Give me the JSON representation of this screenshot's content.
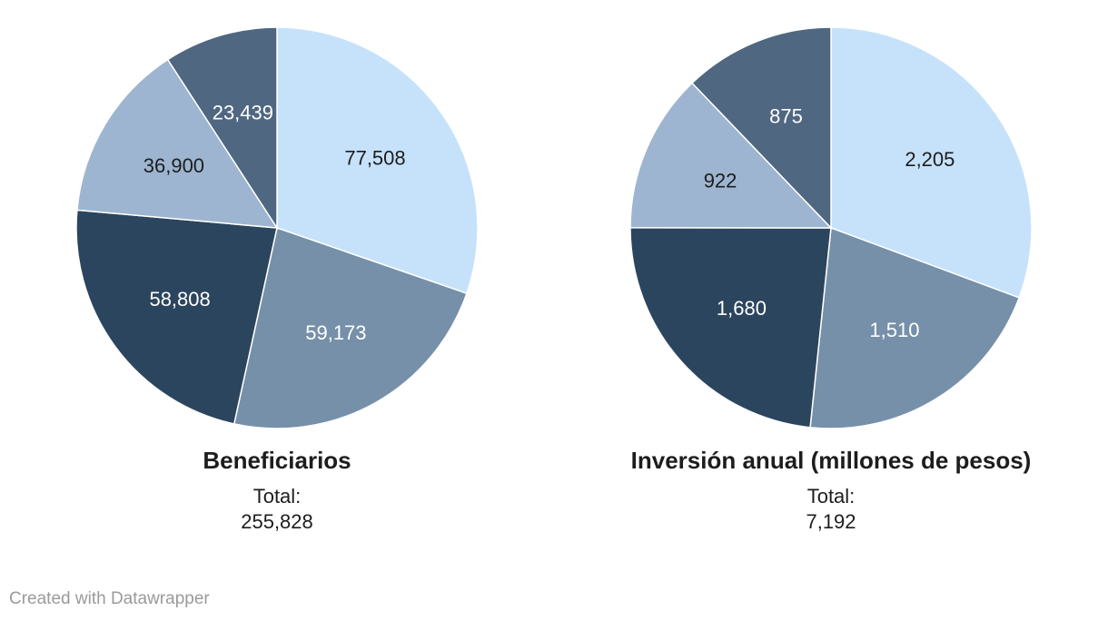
{
  "colors": {
    "light_blue": "#c6e2fb",
    "mid_blue": "#7690a9",
    "dark_navy": "#2c455e",
    "pale_steel": "#9db5d0",
    "slate": "#4f6780",
    "label_dark": "#1d1d1d",
    "label_light": "#ffffff"
  },
  "chart_data": [
    {
      "type": "pie",
      "title": "Beneficiarios",
      "total_label": "Total:",
      "total_value": "255,828",
      "slices": [
        {
          "value": 77508,
          "label": "77,508",
          "color": "#c6e2fb",
          "label_color": "#1d1d1d"
        },
        {
          "value": 59173,
          "label": "59,173",
          "color": "#7690a9",
          "label_color": "#ffffff"
        },
        {
          "value": 58808,
          "label": "58,808",
          "color": "#2c455e",
          "label_color": "#ffffff"
        },
        {
          "value": 36900,
          "label": "36,900",
          "color": "#9db5d0",
          "label_color": "#1d1d1d"
        },
        {
          "value": 23439,
          "label": "23,439",
          "color": "#4f6780",
          "label_color": "#ffffff"
        }
      ]
    },
    {
      "type": "pie",
      "title": "Inversión anual (millones de pesos)",
      "total_label": "Total:",
      "total_value": "7,192",
      "slices": [
        {
          "value": 2205,
          "label": "2,205",
          "color": "#c6e2fb",
          "label_color": "#1d1d1d"
        },
        {
          "value": 1510,
          "label": "1,510",
          "color": "#7690a9",
          "label_color": "#ffffff"
        },
        {
          "value": 1680,
          "label": "1,680",
          "color": "#2c455e",
          "label_color": "#ffffff"
        },
        {
          "value": 922,
          "label": "922",
          "color": "#9db5d0",
          "label_color": "#1d1d1d"
        },
        {
          "value": 875,
          "label": "875",
          "color": "#4f6780",
          "label_color": "#ffffff"
        }
      ]
    }
  ],
  "footer": {
    "credit": "Created with Datawrapper"
  }
}
